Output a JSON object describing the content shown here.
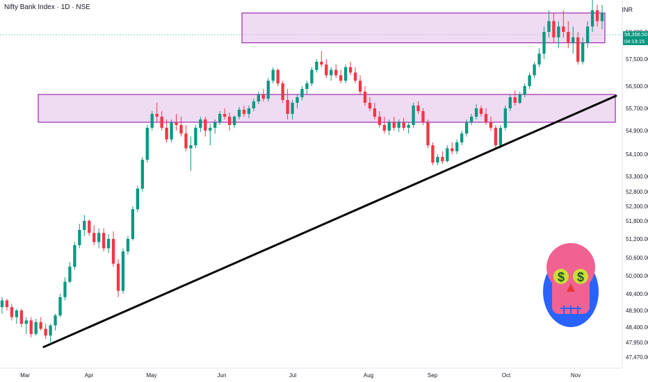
{
  "header": {
    "title": "Nifty Bank Index · 1D · NSE",
    "currency": "INR"
  },
  "last_price": {
    "value": "58,356.50",
    "countdown": "04:19:15"
  },
  "colors": {
    "up": "#089981",
    "down": "#f23645",
    "zone_fill": "#e1bee7",
    "zone_border": "#9c27b0",
    "trendline": "#000000",
    "skull_bg": "#2962ff",
    "skull": "#f06292",
    "eyes": "#cddc39"
  },
  "chart_data": {
    "type": "candlestick",
    "title": "Nifty Bank Index · 1D · NSE",
    "y_tick_labels": [
      "58,000.00",
      "57,500.00",
      "56,500.00",
      "55,700.00",
      "54,900.00",
      "54,100.00",
      "53,300.00",
      "52,800.00",
      "52,300.00",
      "51,800.00",
      "51,200.00",
      "50,600.00",
      "50,000.00",
      "49,400.00",
      "48,900.00",
      "48,400.00",
      "47,950.00",
      "47,470.00"
    ],
    "x_tick_labels": [
      "Mar",
      "Apr",
      "May",
      "Jun",
      "Jul",
      "Aug",
      "Sep",
      "Oct",
      "Nov"
    ],
    "zones": [
      {
        "low": 57800,
        "high": 58350
      },
      {
        "low": 55200,
        "high": 56200
      }
    ],
    "trendline": {
      "from": {
        "month": "Mar",
        "value": 47800
      },
      "to": {
        "month": "Nov",
        "value": 55900
      }
    },
    "candles": [
      [
        49000,
        49300,
        48800,
        49200
      ],
      [
        49200,
        49250,
        48900,
        49000
      ],
      [
        49000,
        49100,
        48600,
        48700
      ],
      [
        48700,
        48950,
        48500,
        48900
      ],
      [
        48900,
        48950,
        48400,
        48500
      ],
      [
        48500,
        48700,
        48200,
        48600
      ],
      [
        48600,
        48700,
        48100,
        48200
      ],
      [
        48200,
        48650,
        48150,
        48550
      ],
      [
        48550,
        48700,
        48300,
        48350
      ],
      [
        48350,
        48500,
        48050,
        48150
      ],
      [
        48150,
        48500,
        47950,
        48450
      ],
      [
        48450,
        48800,
        48300,
        48750
      ],
      [
        48750,
        49400,
        48700,
        49300
      ],
      [
        49300,
        49950,
        49200,
        49800
      ],
      [
        49800,
        50450,
        49750,
        50300
      ],
      [
        50300,
        51100,
        50200,
        51000
      ],
      [
        51000,
        51700,
        50900,
        51500
      ],
      [
        51500,
        52000,
        51300,
        51800
      ],
      [
        51800,
        51850,
        51300,
        51400
      ],
      [
        51400,
        51650,
        51000,
        51100
      ],
      [
        51100,
        51550,
        50900,
        51400
      ],
      [
        51400,
        51550,
        50800,
        50900
      ],
      [
        50900,
        51350,
        50750,
        51200
      ],
      [
        51200,
        51450,
        50300,
        50400
      ],
      [
        50400,
        50550,
        49300,
        49500
      ],
      [
        49500,
        50900,
        49400,
        50800
      ],
      [
        50800,
        51300,
        50700,
        51200
      ],
      [
        51200,
        52300,
        51150,
        52200
      ],
      [
        52200,
        53000,
        52100,
        52900
      ],
      [
        52900,
        54000,
        52800,
        53900
      ],
      [
        53900,
        55100,
        53800,
        55000
      ],
      [
        55000,
        55600,
        54900,
        55500
      ],
      [
        55500,
        55900,
        55200,
        55400
      ],
      [
        55400,
        55600,
        54900,
        55000
      ],
      [
        55000,
        55300,
        54500,
        54600
      ],
      [
        54600,
        55300,
        54500,
        55200
      ],
      [
        55200,
        55500,
        54900,
        55100
      ],
      [
        55100,
        55400,
        54700,
        54800
      ],
      [
        54800,
        55100,
        54200,
        54300
      ],
      [
        54300,
        54700,
        53500,
        54400
      ],
      [
        54400,
        55100,
        54300,
        55000
      ],
      [
        55000,
        55400,
        54850,
        55300
      ],
      [
        55300,
        55400,
        54700,
        54900
      ],
      [
        54900,
        55150,
        54400,
        55000
      ],
      [
        55000,
        55300,
        54800,
        55200
      ],
      [
        55200,
        55600,
        55100,
        55500
      ],
      [
        55500,
        55700,
        55300,
        55400
      ],
      [
        55400,
        55550,
        54900,
        55100
      ],
      [
        55100,
        55450,
        55000,
        55400
      ],
      [
        55400,
        55750,
        55300,
        55650
      ],
      [
        55650,
        55800,
        55400,
        55500
      ],
      [
        55500,
        55800,
        55350,
        55700
      ],
      [
        55700,
        56050,
        55600,
        55950
      ],
      [
        55950,
        56300,
        55850,
        56200
      ],
      [
        56200,
        56400,
        55950,
        56050
      ],
      [
        56050,
        56800,
        55950,
        56700
      ],
      [
        56700,
        57200,
        56600,
        57100
      ],
      [
        57100,
        57150,
        56500,
        56600
      ],
      [
        56600,
        56700,
        55900,
        56000
      ],
      [
        56000,
        56400,
        55300,
        55500
      ],
      [
        55500,
        56000,
        55300,
        55900
      ],
      [
        55900,
        56200,
        55700,
        56100
      ],
      [
        56100,
        56500,
        56000,
        56400
      ],
      [
        56400,
        56700,
        56200,
        56600
      ],
      [
        56600,
        57200,
        56500,
        57100
      ],
      [
        57100,
        57500,
        57000,
        57400
      ],
      [
        57400,
        57650,
        57200,
        57300
      ],
      [
        57300,
        57500,
        56800,
        56900
      ],
      [
        56900,
        57200,
        56700,
        57100
      ],
      [
        57100,
        57300,
        56800,
        56900
      ],
      [
        56900,
        57100,
        56600,
        56700
      ],
      [
        56700,
        57300,
        56600,
        57200
      ],
      [
        57200,
        57400,
        56900,
        57000
      ],
      [
        57000,
        57200,
        56600,
        56700
      ],
      [
        56700,
        56900,
        56200,
        56300
      ],
      [
        56300,
        56500,
        55800,
        55900
      ],
      [
        55900,
        56100,
        55600,
        55700
      ],
      [
        55700,
        55900,
        55300,
        55400
      ],
      [
        55400,
        55600,
        55000,
        55100
      ],
      [
        55100,
        55400,
        54800,
        54900
      ],
      [
        54900,
        55300,
        54750,
        55200
      ],
      [
        55200,
        55400,
        54900,
        55000
      ],
      [
        55000,
        55300,
        54850,
        55200
      ],
      [
        55200,
        55350,
        54900,
        55000
      ],
      [
        55000,
        55200,
        54800,
        55100
      ],
      [
        55100,
        55900,
        55000,
        55800
      ],
      [
        55800,
        55950,
        55500,
        55600
      ],
      [
        55600,
        55700,
        55100,
        55200
      ],
      [
        55200,
        55300,
        54300,
        54400
      ],
      [
        54400,
        54500,
        53700,
        53800
      ],
      [
        53800,
        54100,
        53700,
        54000
      ],
      [
        54000,
        54200,
        53750,
        53850
      ],
      [
        53850,
        54400,
        53800,
        54300
      ],
      [
        54300,
        54500,
        54100,
        54200
      ],
      [
        54200,
        54600,
        54100,
        54500
      ],
      [
        54500,
        54900,
        54400,
        54800
      ],
      [
        54800,
        55300,
        54700,
        55200
      ],
      [
        55200,
        55500,
        55100,
        55400
      ],
      [
        55400,
        55850,
        55300,
        55700
      ],
      [
        55700,
        55800,
        55400,
        55500
      ],
      [
        55500,
        55700,
        55100,
        55200
      ],
      [
        55200,
        55400,
        54900,
        55000
      ],
      [
        55000,
        55100,
        54300,
        54400
      ],
      [
        54400,
        55100,
        54300,
        55000
      ],
      [
        55000,
        55800,
        54900,
        55700
      ],
      [
        55700,
        56200,
        55600,
        56100
      ],
      [
        56100,
        56350,
        55800,
        55900
      ],
      [
        55900,
        56300,
        55850,
        56200
      ],
      [
        56200,
        56600,
        56100,
        56500
      ],
      [
        56500,
        57000,
        56400,
        56900
      ],
      [
        56900,
        57400,
        56800,
        57300
      ],
      [
        57300,
        57700,
        57200,
        57600
      ],
      [
        57600,
        58100,
        57500,
        58000
      ],
      [
        58000,
        58400,
        57900,
        58200
      ],
      [
        58200,
        58350,
        57800,
        57900
      ],
      [
        57900,
        58200,
        57700,
        58100
      ],
      [
        58100,
        58400,
        57900,
        58000
      ],
      [
        58000,
        58200,
        57700,
        57800
      ],
      [
        57800,
        58100,
        57600,
        57900
      ],
      [
        57900,
        58000,
        57300,
        57400
      ],
      [
        57400,
        57900,
        57300,
        57800
      ],
      [
        57800,
        58200,
        57700,
        58100
      ],
      [
        58100,
        58600,
        58000,
        58400
      ],
      [
        58400,
        58500,
        58100,
        58200
      ],
      [
        58200,
        58500,
        58050,
        58350
      ]
    ]
  }
}
